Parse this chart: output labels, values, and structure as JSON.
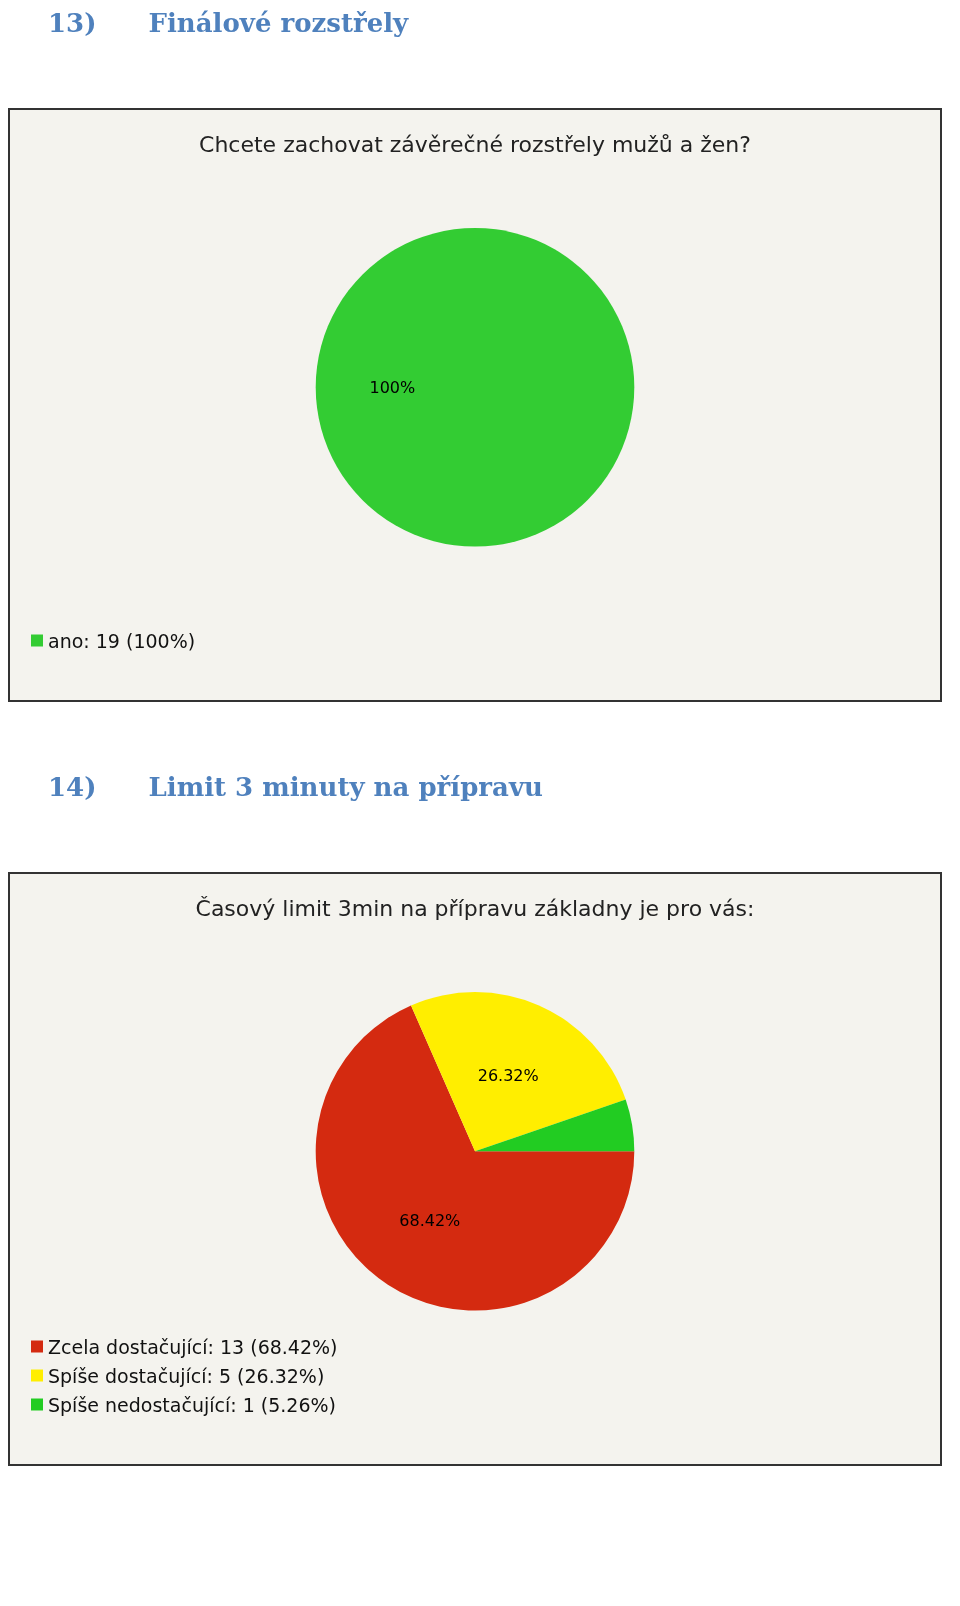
{
  "chart_data": [
    {
      "type": "pie",
      "title": "13)  Finálové rozstřely",
      "subtitle": "Chcete zachovat závěrečné rozstřely mužů a žen?",
      "categories": [
        "ano: 19 (100%)"
      ],
      "values": [
        100
      ],
      "colors": [
        "#33cc33"
      ],
      "value_labels": [
        "100%"
      ],
      "legend": "bottom left"
    },
    {
      "type": "pie",
      "title": "14)  Limit 3 minuty na přípravu",
      "subtitle": "Časový limit 3min na přípravu základny je pro vás:",
      "categories": [
        "Zcela dostačující: 13 (68.42%)",
        "Spíše dostačující: 5 (26.32%)",
        "Spíše nedostačující: 1 (5.26%)"
      ],
      "values": [
        68.42,
        26.32,
        5.26
      ],
      "colors": [
        "#d42a10",
        "#ffee00",
        "#22cc22"
      ],
      "value_labels": [
        "68.42%",
        "26.32%",
        null
      ],
      "legend": "bottom left"
    }
  ]
}
